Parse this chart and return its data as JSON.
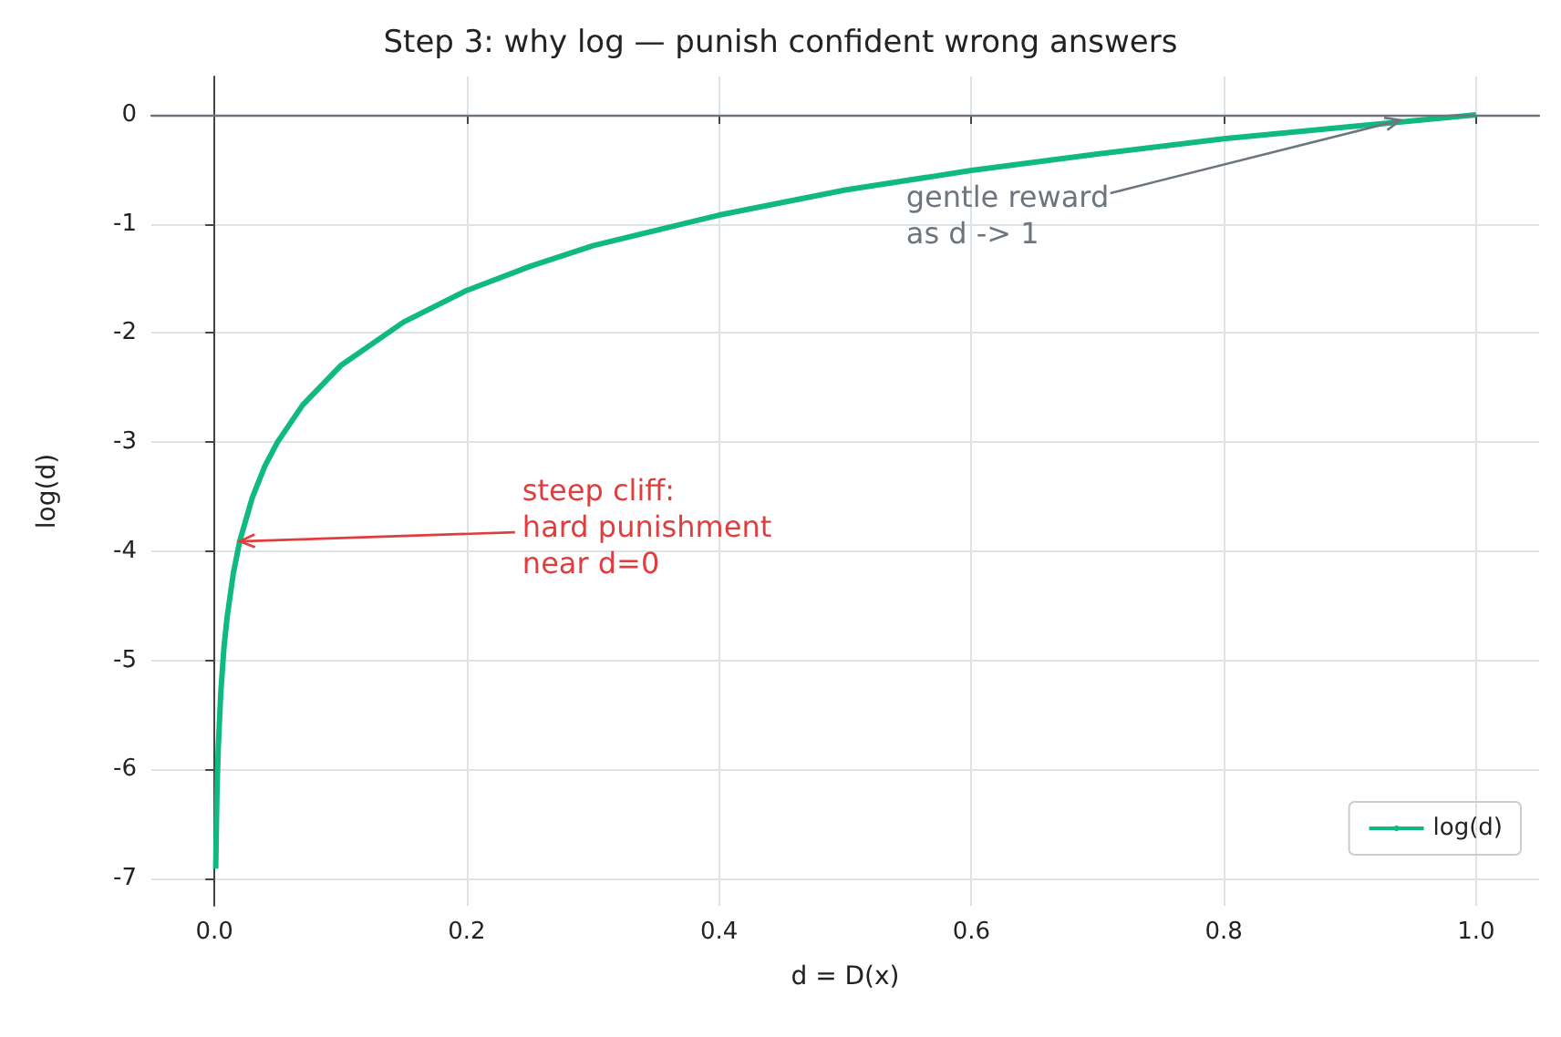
{
  "chart_data": {
    "type": "line",
    "title": "Step 3: why log — punish confident wrong answers",
    "xlabel": "d = D(x)",
    "ylabel": "log(d)",
    "x": [
      0.001,
      0.002,
      0.003,
      0.005,
      0.0075,
      0.01,
      0.015,
      0.02,
      0.03,
      0.04,
      0.05,
      0.07,
      0.1,
      0.15,
      0.2,
      0.25,
      0.3,
      0.4,
      0.5,
      0.6,
      0.7,
      0.8,
      0.9,
      1.0
    ],
    "series": [
      {
        "name": "log(d)",
        "color": "#10b981",
        "values": [
          -6.91,
          -6.21,
          -5.81,
          -5.3,
          -4.89,
          -4.61,
          -4.2,
          -3.91,
          -3.51,
          -3.22,
          -3.0,
          -2.66,
          -2.3,
          -1.9,
          -1.61,
          -1.39,
          -1.2,
          -0.92,
          -0.69,
          -0.51,
          -0.36,
          -0.22,
          -0.11,
          0
        ]
      }
    ],
    "xlim": [
      -0.05,
      1.05
    ],
    "xticks": [
      {
        "value": 0,
        "label": "0.0"
      },
      {
        "value": 0.2,
        "label": "0.2"
      },
      {
        "value": 0.4,
        "label": "0.4"
      },
      {
        "value": 0.6,
        "label": "0.6"
      },
      {
        "value": 0.8,
        "label": "0.8"
      },
      {
        "value": 1,
        "label": "1.0"
      }
    ],
    "ylim": [
      -7.25,
      0.35
    ],
    "yticks": [
      -7,
      -6,
      -5,
      -4,
      -3,
      -2,
      -1,
      0
    ],
    "ref_lines": [
      {
        "axis": "y",
        "value": 0,
        "color": "#6c757d"
      }
    ],
    "annotations": [
      {
        "text": "gentle reward\nas d -> 1",
        "x": 0.94,
        "y": -0.05
      },
      {
        "text": "steep cliff:\nhard punishment\nnear d=0",
        "x": 0.02,
        "y": -3.91
      }
    ],
    "grid": true,
    "legend": "bottom right",
    "marker": "none",
    "line_style": "solid"
  }
}
